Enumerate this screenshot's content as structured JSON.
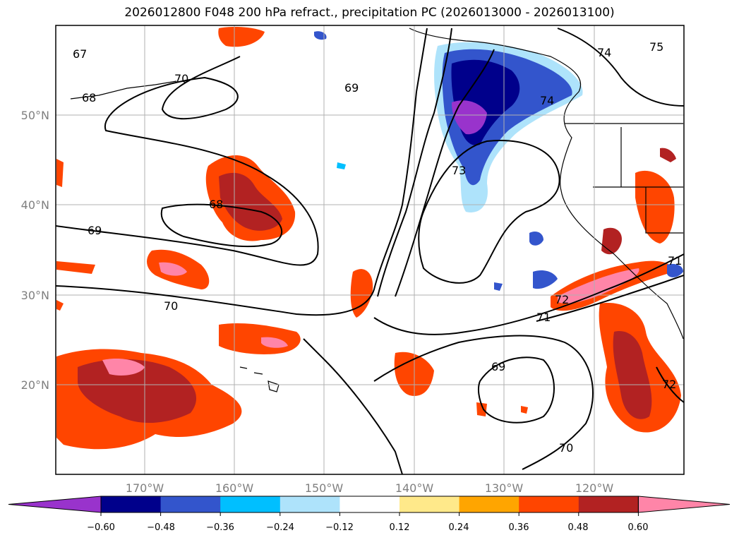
{
  "title": "2026012800 F048 200 hPa refract., precipitation PC (2026013000 - 2026013100)",
  "map": {
    "lat_labels": [
      "50°N",
      "40°N",
      "30°N",
      "20°N"
    ],
    "lon_labels": [
      "170°W",
      "160°W",
      "150°W",
      "140°W",
      "130°W",
      "120°W"
    ],
    "contour_labels": [
      "67",
      "68",
      "69",
      "70",
      "68",
      "69",
      "70",
      "73",
      "74",
      "75",
      "74",
      "71",
      "72",
      "71",
      "69",
      "70",
      "72"
    ]
  },
  "colorbar": {
    "ticks": [
      "−0.60",
      "−0.48",
      "−0.36",
      "−0.24",
      "−0.12",
      "0.12",
      "0.24",
      "0.36",
      "0.48",
      "0.60"
    ],
    "colors": [
      "#9933cc",
      "#00008b",
      "#3355cc",
      "#00bfff",
      "#aee3fb",
      "#ffffff",
      "#ffe98a",
      "#ffa500",
      "#ff4500",
      "#b22222",
      "#ff85a8"
    ]
  },
  "colors": {
    "grid": "#b0b0b0",
    "contour": "#000000",
    "coast": "#000000"
  }
}
